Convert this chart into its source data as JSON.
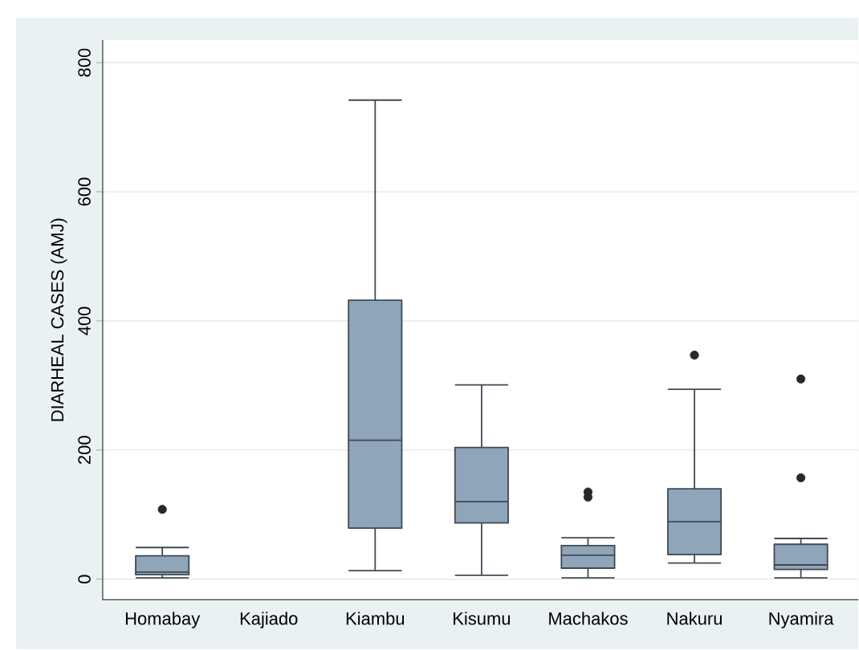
{
  "chart_data": {
    "type": "box",
    "ylabel": "DIARHEAL CASES (AMJ)",
    "categories": [
      "Homabay",
      "Kajiado",
      "Kiambu",
      "Kisumu",
      "Machakos",
      "Nakuru",
      "Nyamira"
    ],
    "series": [
      {
        "color": "#8ea5ba",
        "boxes": [
          {
            "low": 2,
            "q1": 7,
            "median": 11,
            "q3": 36,
            "high": 49,
            "outliers": [
              108
            ]
          },
          null,
          {
            "low": 13,
            "q1": 79,
            "median": 215,
            "q3": 432,
            "high": 742
          },
          {
            "low": 6,
            "q1": 87,
            "median": 120,
            "q3": 204,
            "high": 301
          },
          {
            "low": 2,
            "q1": 17,
            "median": 37,
            "q3": 52,
            "high": 64,
            "outliers": [
              127,
              135
            ]
          },
          {
            "low": 25,
            "q1": 38,
            "median": 89,
            "q3": 140,
            "high": 294,
            "outliers": [
              347
            ]
          },
          {
            "low": 2,
            "q1": 15,
            "median": 22,
            "q3": 54,
            "high": 63,
            "outliers": [
              157,
              310
            ]
          }
        ]
      }
    ],
    "ylim": [
      -32,
      835
    ],
    "yticks": [
      0,
      200,
      400,
      600,
      800
    ],
    "grid": "y"
  }
}
